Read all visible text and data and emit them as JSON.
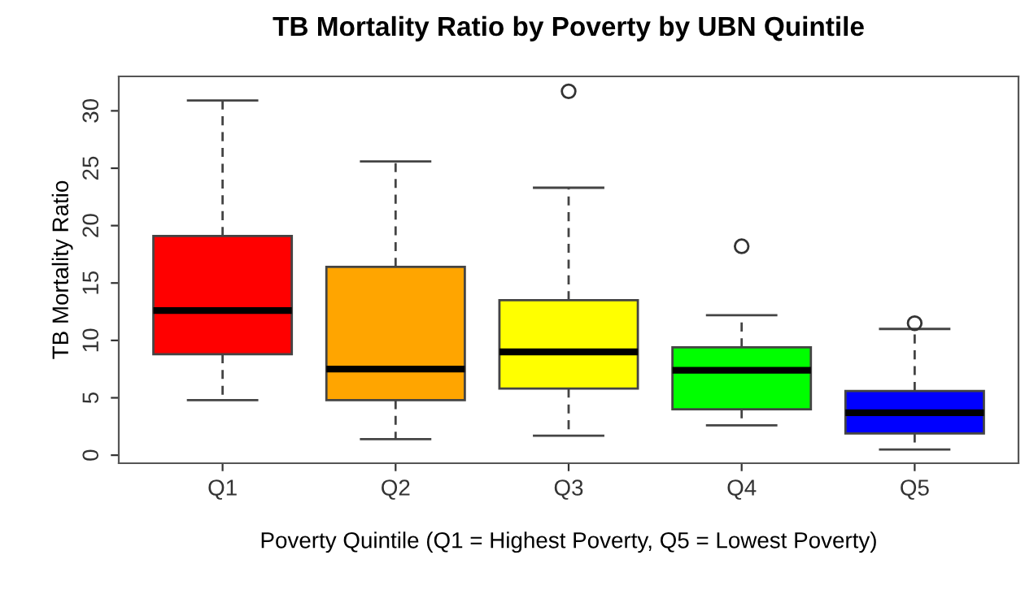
{
  "chart_data": {
    "type": "box",
    "title": "TB Mortality Ratio by Poverty by UBN Quintile",
    "xlabel": "Poverty Quintile (Q1 = Highest Poverty, Q5 = Lowest Poverty)",
    "ylabel": "TB Mortality Ratio",
    "categories": [
      "Q1",
      "Q2",
      "Q3",
      "Q4",
      "Q5"
    ],
    "colors": [
      "#ff0000",
      "#ffa500",
      "#ffff00",
      "#00ff00",
      "#0000ff"
    ],
    "boxes": [
      {
        "low": 4.8,
        "q1": 8.8,
        "median": 12.6,
        "q3": 19.1,
        "high": 30.9
      },
      {
        "low": 1.4,
        "q1": 4.8,
        "median": 7.5,
        "q3": 16.4,
        "high": 25.6
      },
      {
        "low": 1.7,
        "q1": 5.8,
        "median": 9.0,
        "q3": 13.5,
        "high": 23.3,
        "outliers": [
          31.7
        ]
      },
      {
        "low": 2.6,
        "q1": 4.0,
        "median": 7.4,
        "q3": 9.4,
        "high": 12.2,
        "outliers": [
          18.2
        ]
      },
      {
        "low": 0.5,
        "q1": 1.9,
        "median": 3.7,
        "q3": 5.6,
        "high": 11.0,
        "outliers": [
          11.5
        ]
      }
    ],
    "ylim": [
      -0.7,
      33.0
    ],
    "yticks": [
      0,
      5,
      10,
      15,
      20,
      25,
      30
    ],
    "grid": false,
    "legend": false
  }
}
